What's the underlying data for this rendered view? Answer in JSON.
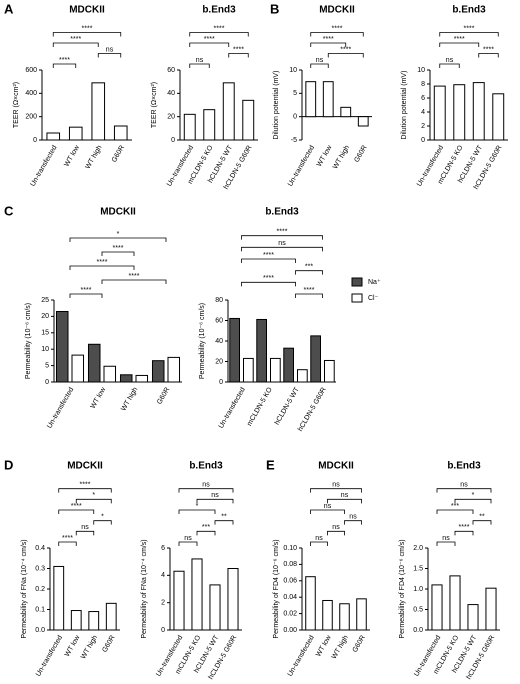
{
  "panels": [
    "A",
    "B",
    "C",
    "D",
    "E"
  ],
  "chart_data": [
    {
      "type": "bar",
      "title": "MDCKII",
      "y_label": "TEER (Ω×cm²)",
      "categories": [
        "Un-transfected",
        "WT low",
        "WT high",
        "G60R"
      ],
      "values": [
        60,
        110,
        490,
        120
      ],
      "color": "#ffffff",
      "ylim": [
        0,
        600
      ],
      "yticks": [
        0,
        200,
        400,
        600
      ],
      "brackets": [
        {
          "label": "****",
          "between": [
            "Un-transfected",
            "WT low"
          ]
        },
        {
          "label": "ns",
          "between": [
            "WT high",
            "G60R"
          ]
        },
        {
          "label": "****",
          "between": [
            "Un-transfected",
            "WT high"
          ]
        },
        {
          "label": "****",
          "between": [
            "Un-transfected",
            "G60R"
          ]
        }
      ]
    },
    {
      "type": "bar",
      "title": "b.End3",
      "y_label": "TEER (Ω×cm²)",
      "categories": [
        "Un-transfected",
        "mCLDN-5 KO",
        "hCLDN-5 WT",
        "hCLDN-5 G60R"
      ],
      "values": [
        22,
        26,
        49,
        34
      ],
      "color": "#ffffff",
      "ylim": [
        0,
        60
      ],
      "yticks": [
        0,
        20,
        40,
        60
      ],
      "brackets": [
        {
          "label": "ns",
          "between": [
            "Un-transfected",
            "mCLDN-5 KO"
          ]
        },
        {
          "label": "****",
          "between": [
            "hCLDN-5 WT",
            "hCLDN-5 G60R"
          ]
        },
        {
          "label": "****",
          "between": [
            "Un-transfected",
            "hCLDN-5 WT"
          ]
        },
        {
          "label": "****",
          "between": [
            "Un-transfected",
            "hCLDN-5 G60R"
          ]
        }
      ]
    },
    {
      "type": "bar",
      "title": "MDCKII",
      "y_label": "Dilution potential (mV)",
      "categories": [
        "Un-transfected",
        "WT low",
        "WT high",
        "G60R"
      ],
      "values": [
        7.5,
        7.5,
        2,
        -2
      ],
      "color": "#ffffff",
      "ylim": [
        -5,
        10
      ],
      "yticks": [
        -5,
        0,
        5,
        10
      ],
      "brackets": [
        {
          "label": "ns",
          "between": [
            "Un-transfected",
            "WT low"
          ]
        },
        {
          "label": "****",
          "between": [
            "WT low",
            "G60R"
          ]
        },
        {
          "label": "****",
          "between": [
            "Un-transfected",
            "WT high"
          ]
        },
        {
          "label": "****",
          "between": [
            "Un-transfected",
            "G60R"
          ]
        }
      ]
    },
    {
      "type": "bar",
      "title": "b.End3",
      "y_label": "Dilution potential (mV)",
      "categories": [
        "Un-transfected",
        "mCLDN-5 KO",
        "hCLDN-5 WT",
        "hCLDN-5 G60R"
      ],
      "values": [
        7.7,
        7.9,
        8.2,
        6.6
      ],
      "color": "#ffffff",
      "ylim": [
        0,
        10
      ],
      "yticks": [
        0,
        2,
        4,
        6,
        8,
        10
      ],
      "brackets": [
        {
          "label": "ns",
          "between": [
            "Un-transfected",
            "mCLDN-5 KO"
          ]
        },
        {
          "label": "****",
          "between": [
            "hCLDN-5 WT",
            "hCLDN-5 G60R"
          ]
        },
        {
          "label": "****",
          "between": [
            "Un-transfected",
            "hCLDN-5 WT"
          ]
        },
        {
          "label": "****",
          "between": [
            "Un-transfected",
            "hCLDN-5 G60R"
          ]
        }
      ]
    },
    {
      "type": "grouped_bar",
      "title": "MDCKII",
      "y_label": "Permeability (10⁻⁶ cm/s)",
      "categories": [
        "Un-transfected",
        "WT low",
        "WT high",
        "G60R"
      ],
      "series": [
        {
          "name": "Na⁺",
          "color": "#4d4d4d",
          "values": [
            21.5,
            11.5,
            2.2,
            6.5
          ]
        },
        {
          "name": "Cl⁻",
          "color": "#ffffff",
          "values": [
            8.2,
            4.8,
            2.0,
            7.5
          ]
        }
      ],
      "ylim": [
        0,
        25
      ],
      "yticks": [
        0,
        5,
        10,
        15,
        20,
        25
      ],
      "brackets": [
        {
          "label": "****",
          "between": [
            "Un-transfected",
            "WT low"
          ]
        },
        {
          "label": "****",
          "between": [
            "WT low",
            "G60R"
          ]
        },
        {
          "label": "****",
          "between": [
            "Un-transfected",
            "WT high"
          ]
        },
        {
          "label": "****",
          "between": [
            "WT low",
            "WT high"
          ]
        },
        {
          "label": "*",
          "between": [
            "Un-transfected",
            "G60R"
          ]
        }
      ]
    },
    {
      "type": "grouped_bar",
      "title": "b.End3",
      "y_label": "Permeability (10⁻⁶ cm/s)",
      "categories": [
        "Un-transfected",
        "mCLDN-5 KO",
        "hCLDN-5 WT",
        "hCLDN-5 G60R"
      ],
      "series": [
        {
          "name": "Na⁺",
          "color": "#4d4d4d",
          "values": [
            62,
            61,
            33,
            45
          ]
        },
        {
          "name": "Cl⁻",
          "color": "#ffffff",
          "values": [
            23,
            23,
            12,
            21
          ]
        }
      ],
      "ylim": [
        0,
        80
      ],
      "yticks": [
        0,
        20,
        40,
        60,
        80
      ],
      "legend": "right",
      "brackets": [
        {
          "label": "****",
          "between": [
            "hCLDN-5 WT",
            "hCLDN-5 G60R"
          ]
        },
        {
          "label": "****",
          "between": [
            "Un-transfected",
            "hCLDN-5 WT"
          ]
        },
        {
          "label": "***",
          "between": [
            "hCLDN-5 WT",
            "hCLDN-5 G60R"
          ]
        },
        {
          "label": "****",
          "between": [
            "Un-transfected",
            "hCLDN-5 WT"
          ]
        },
        {
          "label": "ns",
          "between": [
            "Un-transfected",
            "hCLDN-5 G60R"
          ]
        },
        {
          "label": "****",
          "between": [
            "Un-transfected",
            "hCLDN-5 G60R"
          ]
        }
      ]
    },
    {
      "type": "bar",
      "title": "MDCKII",
      "y_label": "Permeability of FNa (10⁻⁴ cm/s)",
      "categories": [
        "Un-transfected",
        "WT low",
        "WT high",
        "G60R"
      ],
      "values": [
        0.31,
        0.095,
        0.09,
        0.13
      ],
      "color": "#ffffff",
      "ylim": [
        0,
        0.4
      ],
      "yticks": [
        {
          "value": 0,
          "label": "0.0"
        },
        0.1,
        0.2,
        0.3,
        0.4
      ],
      "brackets": [
        {
          "label": "****",
          "between": [
            "Un-transfected",
            "WT low"
          ]
        },
        {
          "label": "ns",
          "between": [
            "WT low",
            "WT high"
          ]
        },
        {
          "label": "*",
          "between": [
            "WT high",
            "G60R"
          ]
        },
        {
          "label": "****",
          "between": [
            "Un-transfected",
            "WT high"
          ]
        },
        {
          "label": "*",
          "between": [
            "WT low",
            "G60R"
          ]
        },
        {
          "label": "****",
          "between": [
            "Un-transfected",
            "G60R"
          ]
        }
      ]
    },
    {
      "type": "bar",
      "title": "b.End3",
      "y_label": "Permeability of FNa (10⁻⁴ cm/s)",
      "categories": [
        "Un-transfected",
        "mCLDN-5 KO",
        "hCLDN-5 WT",
        "hCLDN-5 G60R"
      ],
      "values": [
        4.3,
        5.2,
        3.3,
        4.5
      ],
      "color": "#ffffff",
      "ylim": [
        0,
        6
      ],
      "yticks": [
        0,
        2,
        4,
        6
      ],
      "brackets": [
        {
          "label": "ns",
          "between": [
            "Un-transfected",
            "mCLDN-5 KO"
          ]
        },
        {
          "label": "***",
          "between": [
            "mCLDN-5 KO",
            "hCLDN-5 WT"
          ]
        },
        {
          "label": "**",
          "between": [
            "hCLDN-5 WT",
            "hCLDN-5 G60R"
          ]
        },
        {
          "label": "*",
          "between": [
            "Un-transfected",
            "hCLDN-5 WT"
          ]
        },
        {
          "label": "ns",
          "between": [
            "mCLDN-5 KO",
            "hCLDN-5 G60R"
          ]
        },
        {
          "label": "ns",
          "between": [
            "Un-transfected",
            "hCLDN-5 G60R"
          ]
        }
      ]
    },
    {
      "type": "bar",
      "title": "MDCKII",
      "y_label": "Permeability of FD4 (10⁻⁶ cm/s)",
      "categories": [
        "Un-transfected",
        "WT low",
        "WT high",
        "G60R"
      ],
      "values": [
        0.065,
        0.036,
        0.032,
        0.038
      ],
      "color": "#ffffff",
      "ylim": [
        0,
        0.1
      ],
      "yticks": [
        {
          "value": 0,
          "label": "0.00"
        },
        {
          "value": 0.02,
          "label": "0.02"
        },
        {
          "value": 0.04,
          "label": "0.04"
        },
        {
          "value": 0.06,
          "label": "0.06"
        },
        {
          "value": 0.08,
          "label": "0.08"
        },
        {
          "value": 0.1,
          "label": "0.10"
        }
      ],
      "brackets": [
        {
          "label": "ns",
          "between": [
            "Un-transfected",
            "WT low"
          ]
        },
        {
          "label": "ns",
          "between": [
            "WT low",
            "WT high"
          ]
        },
        {
          "label": "ns",
          "between": [
            "WT high",
            "G60R"
          ]
        },
        {
          "label": "ns",
          "between": [
            "Un-transfected",
            "WT high"
          ]
        },
        {
          "label": "ns",
          "between": [
            "WT low",
            "G60R"
          ]
        },
        {
          "label": "ns",
          "between": [
            "Un-transfected",
            "G60R"
          ]
        }
      ]
    },
    {
      "type": "bar",
      "title": "b.End3",
      "y_label": "Permeability of FD4 (10⁻⁶ cm/s)",
      "categories": [
        "Un-transfected",
        "mCLDN-5 KO",
        "hCLDN-5 WT",
        "hCLDN-5 G60R"
      ],
      "values": [
        1.1,
        1.32,
        0.62,
        1.02
      ],
      "color": "#ffffff",
      "ylim": [
        0,
        2
      ],
      "yticks": [
        {
          "value": 0,
          "label": "0.0"
        },
        0.5,
        {
          "value": 1,
          "label": "1.0"
        },
        1.5,
        {
          "value": 2,
          "label": "2.0"
        }
      ],
      "brackets": [
        {
          "label": "ns",
          "between": [
            "Un-transfected",
            "mCLDN-5 KO"
          ]
        },
        {
          "label": "****",
          "between": [
            "mCLDN-5 KO",
            "hCLDN-5 WT"
          ]
        },
        {
          "label": "**",
          "between": [
            "hCLDN-5 WT",
            "hCLDN-5 G60R"
          ]
        },
        {
          "label": "***",
          "between": [
            "Un-transfected",
            "hCLDN-5 WT"
          ]
        },
        {
          "label": "*",
          "between": [
            "mCLDN-5 KO",
            "hCLDN-5 G60R"
          ]
        },
        {
          "label": "ns",
          "between": [
            "Un-transfected",
            "hCLDN-5 G60R"
          ]
        }
      ]
    }
  ]
}
